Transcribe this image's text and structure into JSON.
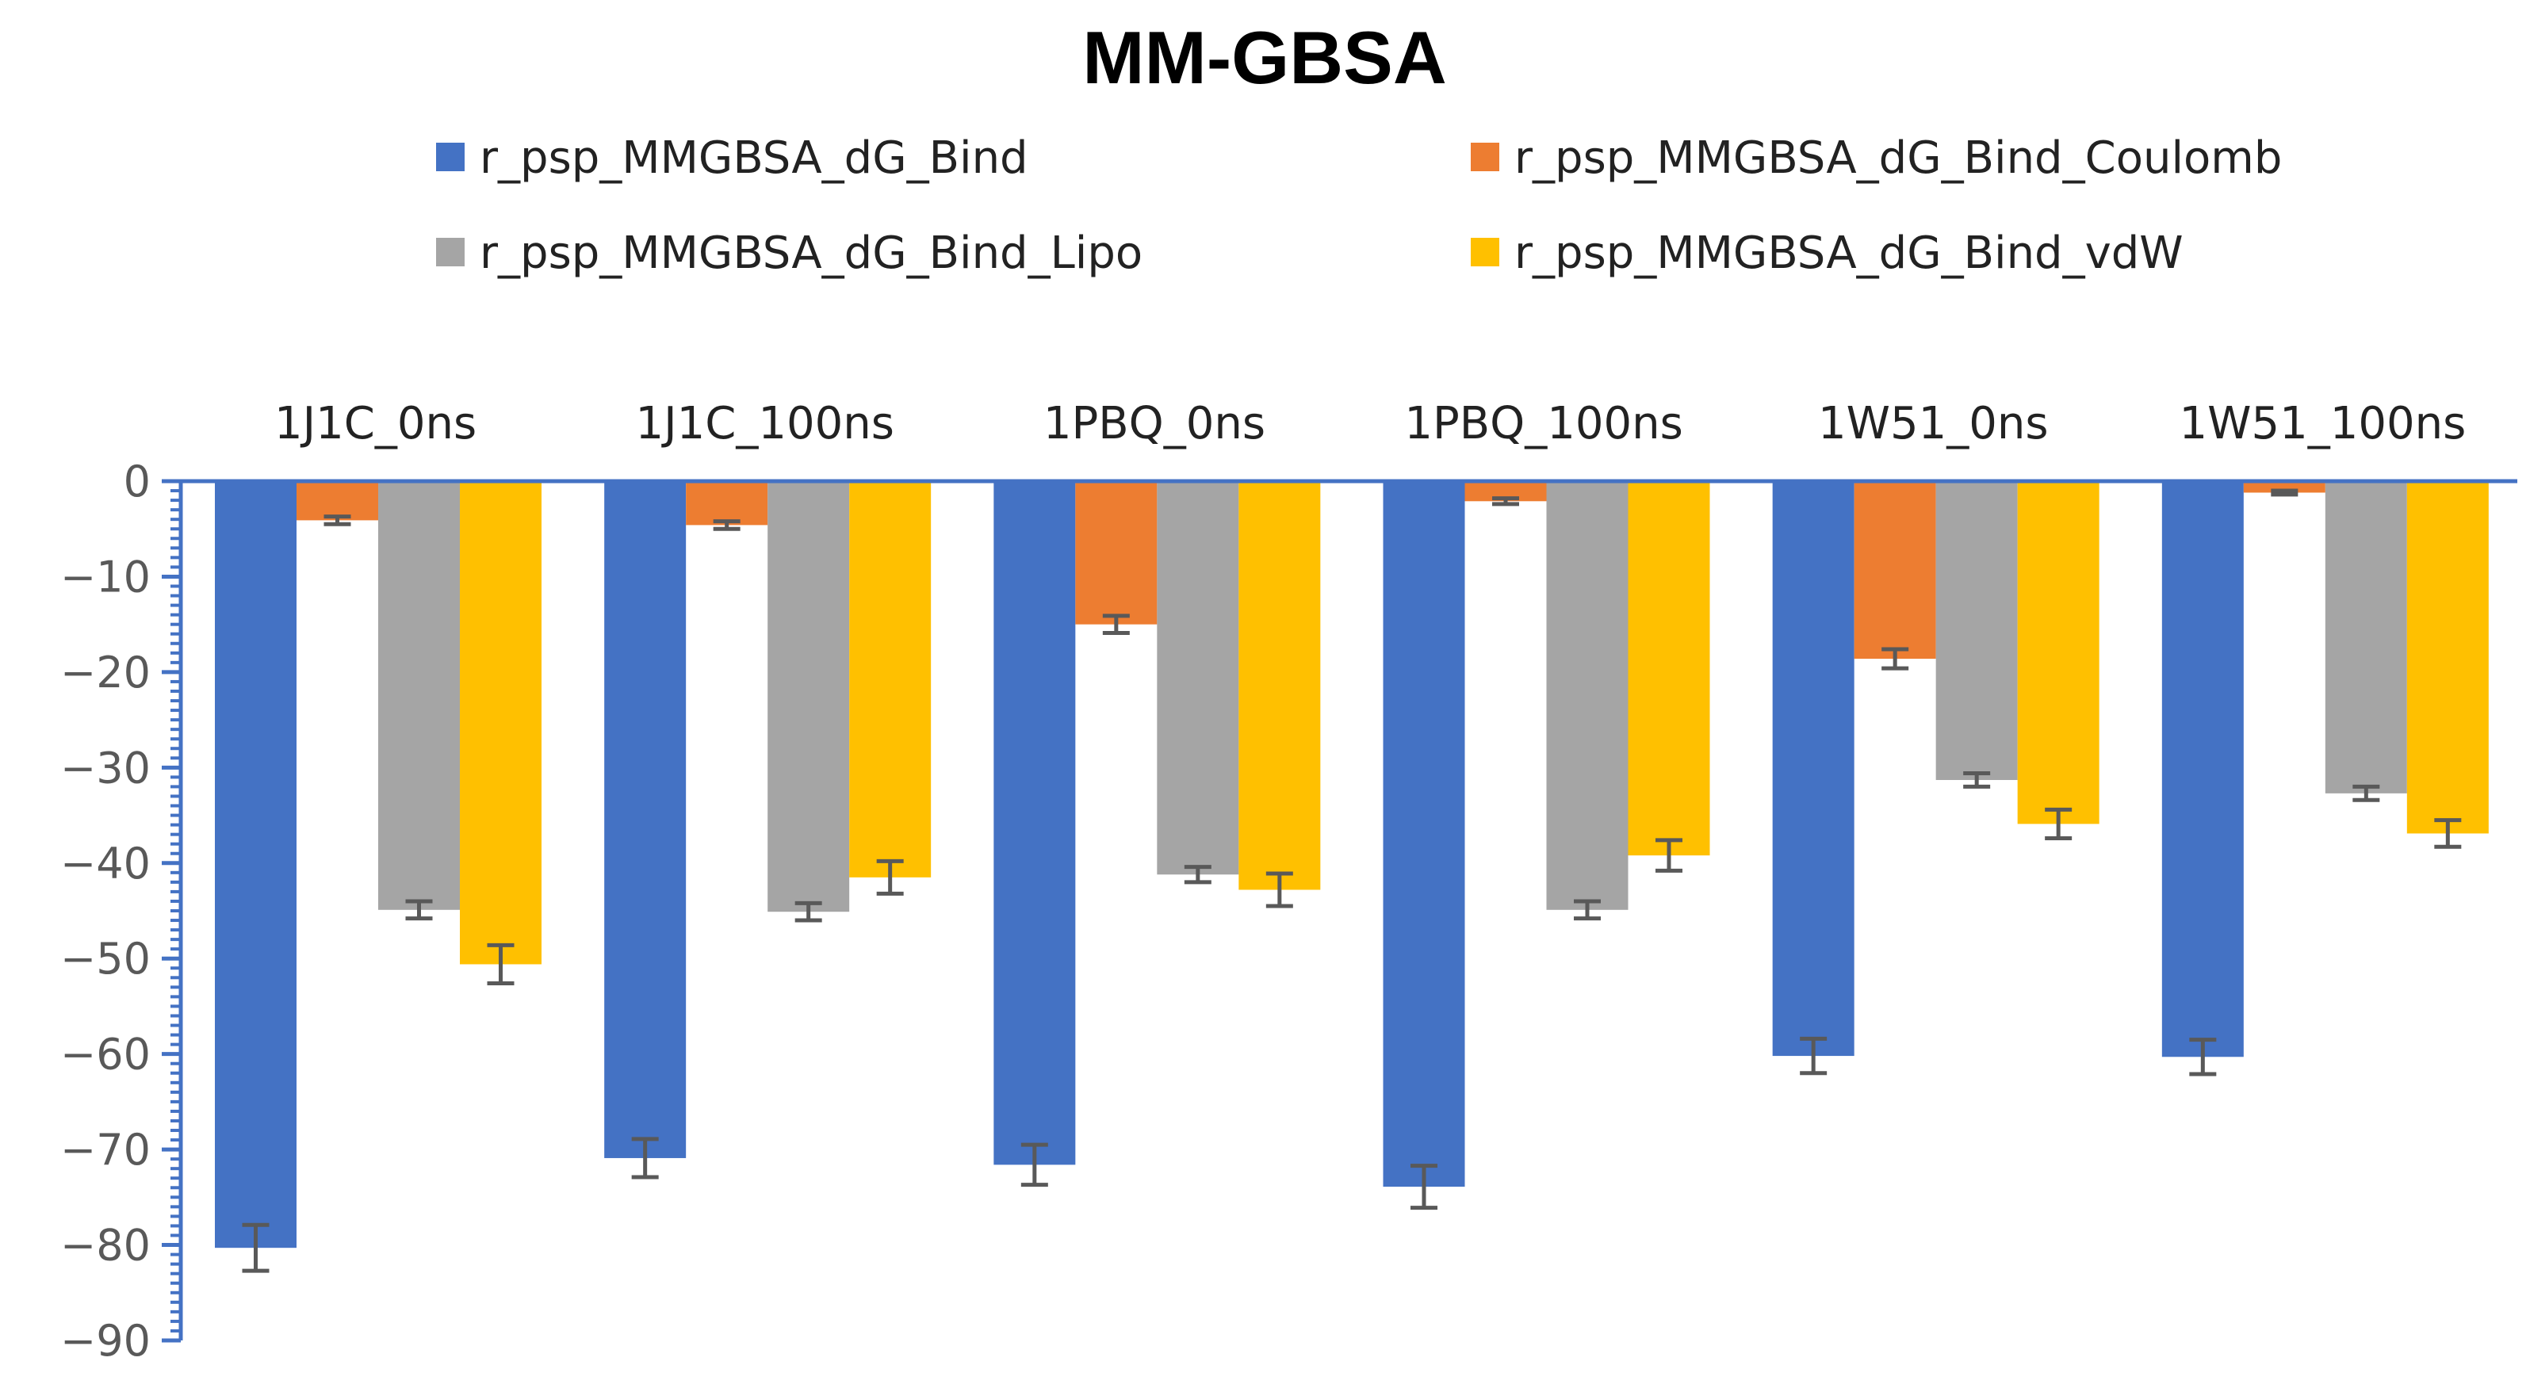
{
  "chart_data": {
    "type": "bar",
    "title": "MM-GBSA",
    "xlabel": "",
    "ylabel": "",
    "ylim": [
      -90,
      0
    ],
    "yticks": [
      0,
      -10,
      -20,
      -30,
      -40,
      -50,
      -60,
      -70,
      -80,
      -90
    ],
    "ytick_labels": [
      "0",
      "−10",
      "−20",
      "−30",
      "−40",
      "−50",
      "−60",
      "−70",
      "−80",
      "−90"
    ],
    "categories": [
      "1J1C_0ns",
      "1J1C_100ns",
      "1PBQ_0ns",
      "1PBQ_100ns",
      "1W51_0ns",
      "1W51_100ns"
    ],
    "legend_position": "top",
    "grid": false,
    "series": [
      {
        "name": "r_psp_MMGBSA_dG_Bind",
        "color": "#4472C4",
        "values": [
          -80.3,
          -70.9,
          -71.6,
          -73.9,
          -60.2,
          -60.3
        ],
        "errors": [
          2.4,
          2.0,
          2.1,
          2.2,
          1.8,
          1.8
        ]
      },
      {
        "name": "r_psp_MMGBSA_dG_Bind_Coulomb",
        "color": "#ED7D31",
        "values": [
          -4.1,
          -4.6,
          -15.0,
          -2.1,
          -18.6,
          -1.2
        ],
        "errors": [
          0.4,
          0.4,
          0.9,
          0.3,
          1.0,
          0.2
        ]
      },
      {
        "name": "r_psp_MMGBSA_dG_Bind_Lipo",
        "color": "#A5A5A5",
        "values": [
          -44.9,
          -45.1,
          -41.2,
          -44.9,
          -31.3,
          -32.7
        ],
        "errors": [
          0.9,
          0.9,
          0.8,
          0.9,
          0.7,
          0.7
        ]
      },
      {
        "name": "r_psp_MMGBSA_dG_Bind_vdW",
        "color": "#FFC000",
        "values": [
          -50.6,
          -41.5,
          -42.8,
          -39.2,
          -35.9,
          -36.9
        ],
        "errors": [
          2.0,
          1.7,
          1.7,
          1.6,
          1.5,
          1.4
        ]
      }
    ]
  },
  "colors": {
    "axis": "#4472C4",
    "errorbar": "#595959"
  }
}
